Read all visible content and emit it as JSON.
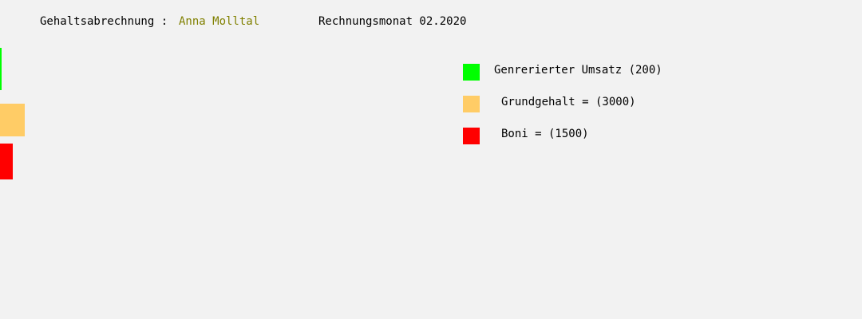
{
  "header": {
    "label": "Gehaltsabrechnung :",
    "employee_name": "Anna Molltal",
    "employee_name_color": "#808000",
    "month_text": "Rechnungsmonat 02.2020"
  },
  "chart_data": {
    "type": "bar",
    "orientation": "horizontal",
    "categories": [
      "Genrerierter Umsatz",
      "Grundgehalt",
      "Boni"
    ],
    "values": [
      200,
      3000,
      1500
    ],
    "colors": [
      "#00ff00",
      "#ffcc66",
      "#ff0000"
    ],
    "legend": {
      "placement": "right",
      "entries": [
        {
          "label": "Genrerierter Umsatz (200)",
          "color": "#00ff00"
        },
        {
          "label": "Grundgehalt = (3000)",
          "color": "#ffcc66"
        },
        {
          "label": "Boni = (1500)",
          "color": "#ff0000"
        }
      ]
    }
  }
}
